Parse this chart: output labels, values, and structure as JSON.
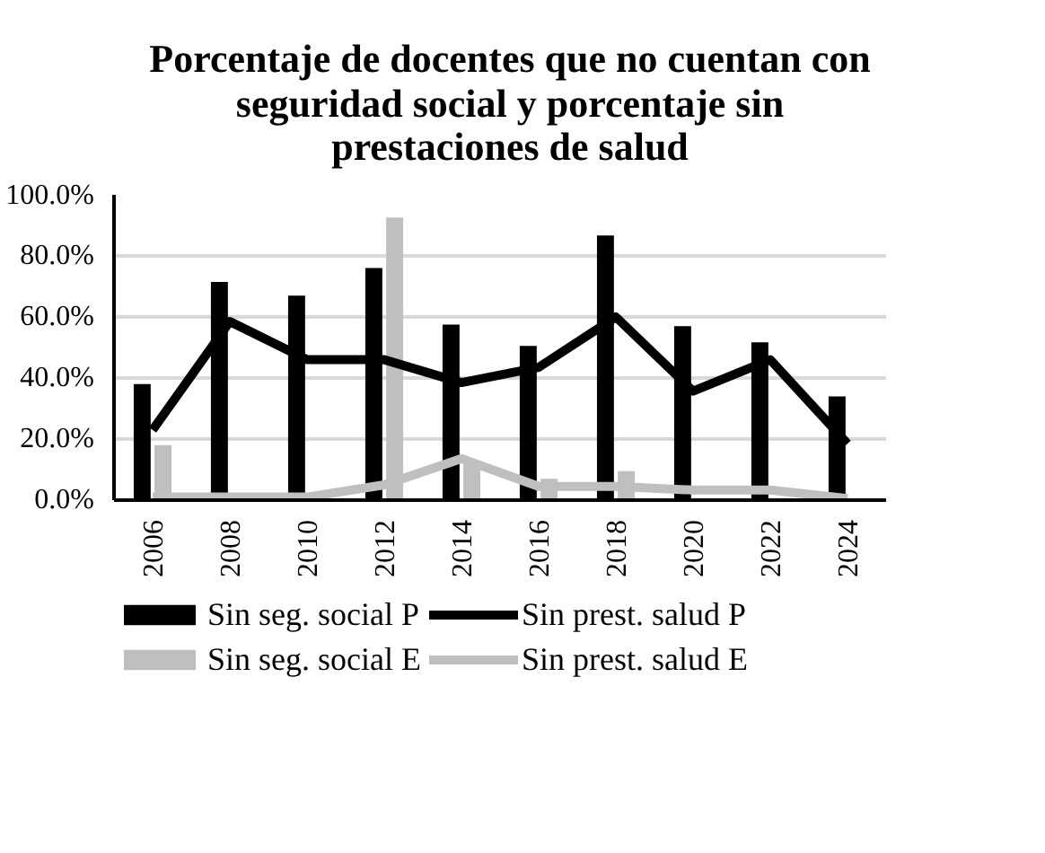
{
  "chart_data": {
    "type": "bar",
    "title": "Porcentaje de docentes que no cuentan con seguridad social y porcentaje sin prestaciones de salud",
    "categories": [
      "2006",
      "2008",
      "2010",
      "2012",
      "2014",
      "2016",
      "2018",
      "2020",
      "2022",
      "2024"
    ],
    "series": [
      {
        "name": "Sin seg. social P",
        "color": "#000000",
        "values": [
          38,
          71.5,
          67,
          76,
          57.5,
          50.5,
          86.7,
          57,
          51.7,
          34
        ]
      },
      {
        "name": "Sin seg. social E",
        "color": "#bfbfbf",
        "values": [
          18,
          0,
          0,
          92.6,
          13,
          7,
          9.5,
          0,
          0,
          0
        ]
      },
      {
        "name": "Sin prest. salud P",
        "color": "#000000",
        "type": "line",
        "values": [
          23,
          58.5,
          46,
          46,
          38.5,
          43.5,
          60,
          35.7,
          46,
          18.5
        ]
      },
      {
        "name": "Sin prest. salud E",
        "color": "#bfbfbf",
        "type": "line",
        "values": [
          1,
          1,
          1,
          5,
          13.6,
          4.5,
          4.5,
          3.3,
          3.3,
          0.5
        ]
      }
    ],
    "ylim": [
      0,
      100
    ],
    "yticks": [
      {
        "value": 0,
        "label": "0.0%"
      },
      {
        "value": 20,
        "label": "20.0%"
      },
      {
        "value": 40,
        "label": "40.0%"
      },
      {
        "value": 60,
        "label": "60.0%"
      },
      {
        "value": 80,
        "label": "80.0%"
      },
      {
        "value": 100,
        "label": "100.0%"
      }
    ],
    "grid": "y",
    "legend": "bottom",
    "line_style": "solid",
    "marker": "none"
  }
}
